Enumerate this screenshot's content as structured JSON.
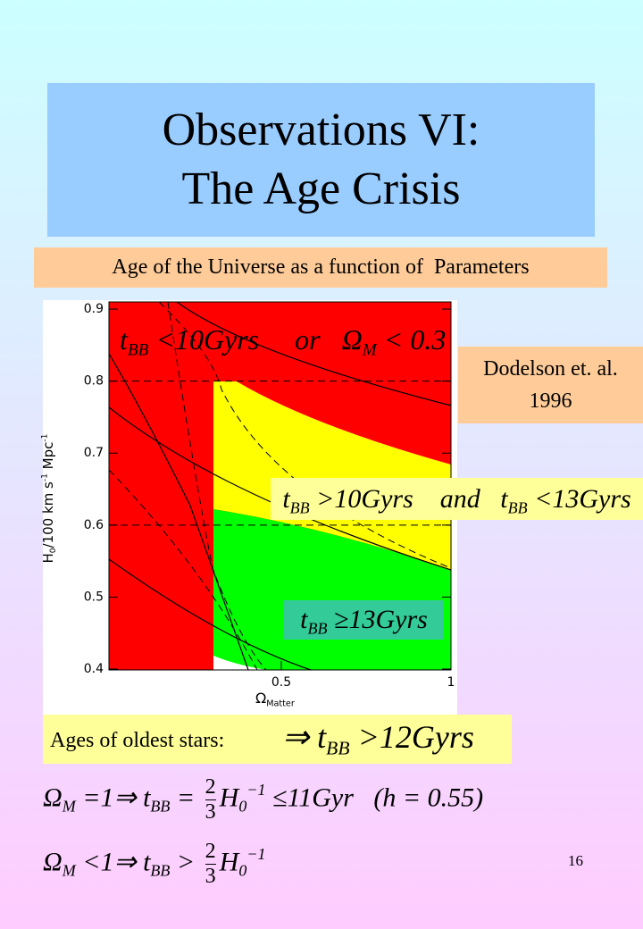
{
  "title": [
    "Observations VI:",
    "The Age Crisis"
  ],
  "subtitle": "Age of the Universe as a function of  Parameters",
  "citation": [
    "Dodelson et. al.",
    "1996"
  ],
  "chart_data": {
    "type": "region",
    "ylabel": [
      {
        "text": "H"
      },
      {
        "text": "0",
        "sub": true
      },
      {
        "text": "/100 km s"
      },
      {
        "text": "-1",
        "sup": true
      },
      {
        "text": " Mpc"
      },
      {
        "text": "-1",
        "sup": true
      }
    ],
    "xlabel": [
      {
        "text": "Ω"
      },
      {
        "text": "Matter",
        "sub": true
      }
    ],
    "xlim": [
      0,
      1
    ],
    "ylim": [
      0.4,
      0.91
    ],
    "xticks": [
      0.5,
      1
    ],
    "yticks": [
      0.4,
      0.5,
      0.6,
      0.7,
      0.8,
      0.9
    ],
    "hlines": [
      0.8,
      0.6
    ],
    "region_label": [
      {
        "text": "t"
      },
      {
        "text": "BB",
        "sub": true
      },
      {
        "text": " <10Gyrs     or   Ω"
      },
      {
        "text": "M",
        "sub": true
      },
      {
        "text": " < 0.3"
      }
    ]
  },
  "middle_label": [
    {
      "text": "t"
    },
    {
      "text": "BB",
      "sub": true
    },
    {
      "text": " >10Gyrs    and   t"
    },
    {
      "text": "BB",
      "sub": true
    },
    {
      "text": " <13Gyrs"
    }
  ],
  "old_label": [
    {
      "text": "t"
    },
    {
      "text": "BB",
      "sub": true
    },
    {
      "text": " ≥13Gyrs"
    }
  ],
  "stars": {
    "label": "Ages of oldest stars:",
    "math": [
      {
        "text": "⇒ t"
      },
      {
        "text": "BB",
        "sub": true
      },
      {
        "text": " >12Gyrs"
      }
    ]
  },
  "equations": [
    [
      {
        "text": "Ω"
      },
      {
        "text": "M",
        "sub": true
      },
      {
        "text": " =1⇒ t"
      },
      {
        "text": "BB",
        "sub": true
      },
      {
        "text": " = "
      },
      {
        "num": "2",
        "den": "3"
      },
      {
        "text": "H"
      },
      {
        "text": "0",
        "sub": true
      },
      {
        "text": "−1",
        "sup": true
      },
      {
        "text": " ≤11Gyr   (h = 0.55)"
      }
    ],
    [
      {
        "text": "Ω"
      },
      {
        "text": "M",
        "sub": true
      },
      {
        "text": " <1⇒ t"
      },
      {
        "text": "BB",
        "sub": true
      },
      {
        "text": " > "
      },
      {
        "num": "2",
        "den": "3"
      },
      {
        "text": "H"
      },
      {
        "text": "0",
        "sub": true
      },
      {
        "text": "−1",
        "sup": true
      }
    ]
  ],
  "page_number": "16"
}
